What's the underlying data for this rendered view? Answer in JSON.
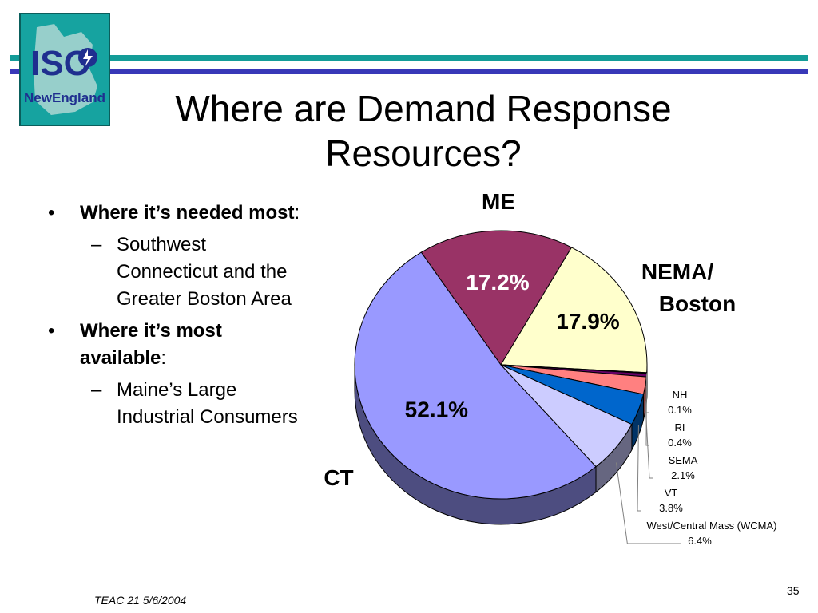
{
  "header": {
    "title_line1": "Where are Demand Response",
    "title_line2": "Resources?",
    "logo_text_iso": "ISO",
    "logo_text_ne": "NewEngland",
    "bar_colors": [
      "#139c98",
      "#3838b8"
    ]
  },
  "bullets": {
    "b1_bold": "Where it’s needed most",
    "b1_suffix": ":",
    "b1_sub_line1": "Southwest",
    "b1_sub_line2": "Connecticut and the",
    "b1_sub_line3": "Greater Boston  Area",
    "b2_bold_line1": "Where it’s most",
    "b2_bold_line2": "available",
    "b2_suffix": ":",
    "b2_sub_line1": "Maine’s Large",
    "b2_sub_line2": "Industrial Consumers"
  },
  "footer": {
    "left": "TEAC 21 5/6/2004",
    "page": "35"
  },
  "chart_data": {
    "type": "pie",
    "slices": [
      {
        "name": "ME",
        "value": 17.2,
        "label": "17.2%",
        "color": "#993366",
        "side_color": "#4d1a33"
      },
      {
        "name": "NEMA/ Boston",
        "value": 17.9,
        "label": "17.9%",
        "color": "#ffffcc",
        "side_color": "#808066"
      },
      {
        "name": "NH",
        "value": 0.1,
        "label": "0.1%",
        "color": "#660066",
        "side_color": "#330033"
      },
      {
        "name": "RI",
        "value": 0.4,
        "label": "0.4%",
        "color": "#660066",
        "side_color": "#330033"
      },
      {
        "name": "SEMA",
        "value": 2.1,
        "label": "2.1%",
        "color": "#ff8080",
        "side_color": "#804040"
      },
      {
        "name": "VT",
        "value": 3.8,
        "label": "3.8%",
        "color": "#0066cc",
        "side_color": "#003366"
      },
      {
        "name": "West/Central Mass (WCMA)",
        "value": 6.4,
        "label": "6.4%",
        "color": "#ccccff",
        "side_color": "#666680"
      },
      {
        "name": "CT",
        "value": 52.1,
        "label": "52.1%",
        "color": "#9999ff",
        "side_color": "#4d4d80"
      }
    ],
    "big_labels": {
      "me": "ME",
      "nema_line1": "NEMA/",
      "nema_line2": "Boston",
      "ct": "CT"
    }
  }
}
